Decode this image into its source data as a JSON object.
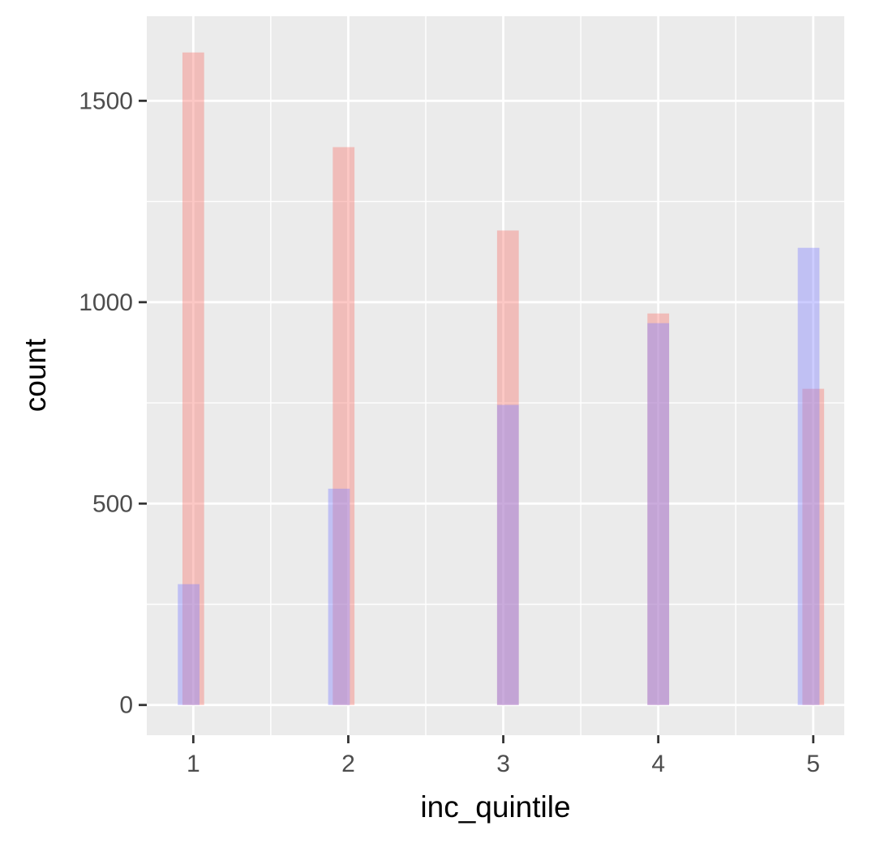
{
  "chart_data": {
    "type": "bar",
    "title": "",
    "xlabel": "inc_quintile",
    "ylabel": "count",
    "x_ticks": [
      1,
      2,
      3,
      4,
      5
    ],
    "y_ticks": [
      0,
      500,
      1000,
      1500
    ],
    "xlim": [
      0.7,
      5.2
    ],
    "ylim": [
      -75,
      1710
    ],
    "grid": true,
    "legend": "none",
    "bar_width": 0.14,
    "series": [
      {
        "x": [
          1,
          1.97,
          3.03,
          4,
          5
        ],
        "values": [
          1620,
          1385,
          1178,
          972,
          785
        ],
        "color": "#F8766D"
      },
      {
        "x": [
          0.97,
          1.94,
          3.03,
          4,
          4.97
        ],
        "values": [
          300,
          537,
          745,
          948,
          1135
        ],
        "color": "#8080FF"
      }
    ]
  }
}
